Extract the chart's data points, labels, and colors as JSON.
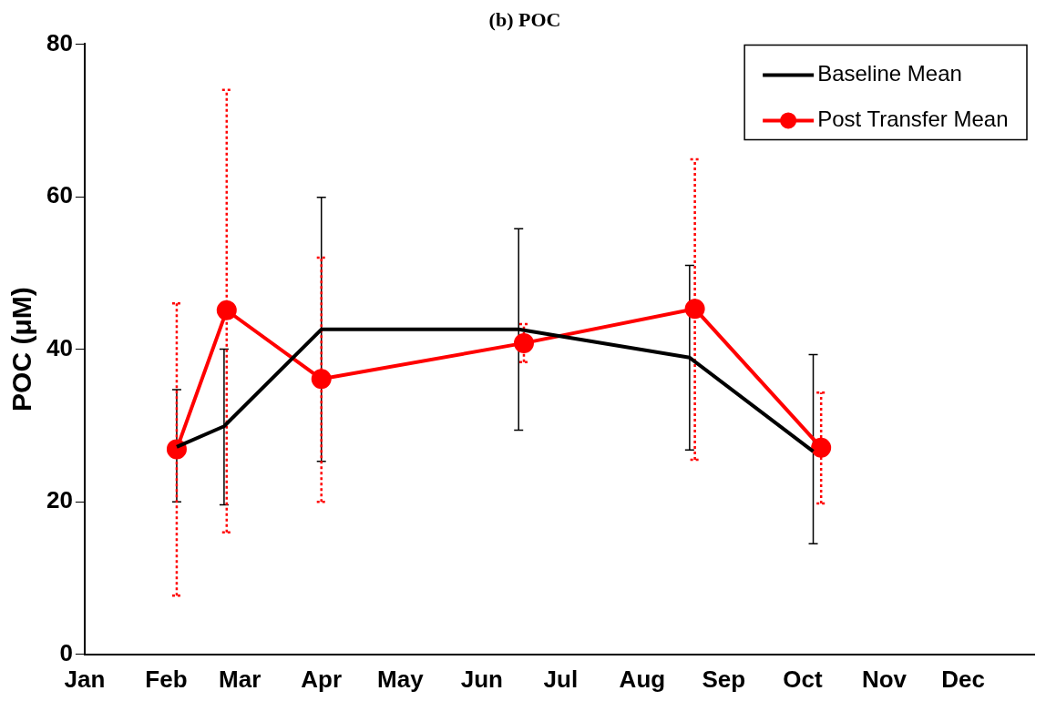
{
  "chart_data": {
    "type": "line",
    "title": "(b) POC",
    "ylabel": "POC (μM)",
    "xlim": [
      "--01-01",
      "--12-28"
    ],
    "xticks": [
      {
        "value": "--01-01",
        "label": "Jan"
      },
      {
        "value": "--02-01",
        "label": "Feb"
      },
      {
        "value": "--03-01",
        "label": "Mar"
      },
      {
        "value": "--04-01",
        "label": "Apr"
      },
      {
        "value": "--05-01",
        "label": "May"
      },
      {
        "value": "--06-01",
        "label": "Jun"
      },
      {
        "value": "--07-01",
        "label": "Jul"
      },
      {
        "value": "--08-01",
        "label": "Aug"
      },
      {
        "value": "--09-01",
        "label": "Sep"
      },
      {
        "value": "--10-01",
        "label": "Oct"
      },
      {
        "value": "--11-01",
        "label": "Nov"
      },
      {
        "value": "--12-01",
        "label": "Dec"
      }
    ],
    "ylim": [
      0,
      80
    ],
    "yticks": [
      0,
      20,
      40,
      60,
      80
    ],
    "grid": false,
    "legend": "top right",
    "series": [
      {
        "name": "Baseline Mean",
        "color": "#000000",
        "marker": "none",
        "x": [
          "--02-05",
          "--02-23",
          "--04-01",
          "--06-15",
          "--08-19",
          "--10-05"
        ],
        "values": [
          27.2,
          29.9,
          42.6,
          42.6,
          38.9,
          26.6
        ],
        "errors": [
          [
            20.0,
            34.7
          ],
          [
            19.6,
            40.0
          ],
          [
            25.3,
            59.9
          ],
          [
            29.4,
            55.8
          ],
          [
            26.8,
            51.0
          ],
          [
            14.5,
            39.3
          ]
        ]
      },
      {
        "name": "Post Transfer Mean",
        "color": "#ff0000",
        "marker": "circle",
        "x": [
          "--02-05",
          "--02-24",
          "--04-01",
          "--06-17",
          "--08-21",
          "--10-08"
        ],
        "values": [
          26.9,
          45.1,
          36.1,
          40.8,
          45.3,
          27.1
        ],
        "errors": [
          [
            7.7,
            46.0
          ],
          [
            16.0,
            74.0
          ],
          [
            20.0,
            52.0
          ],
          [
            38.3,
            43.3
          ],
          [
            25.5,
            64.9
          ],
          [
            19.8,
            34.3
          ]
        ]
      }
    ]
  }
}
